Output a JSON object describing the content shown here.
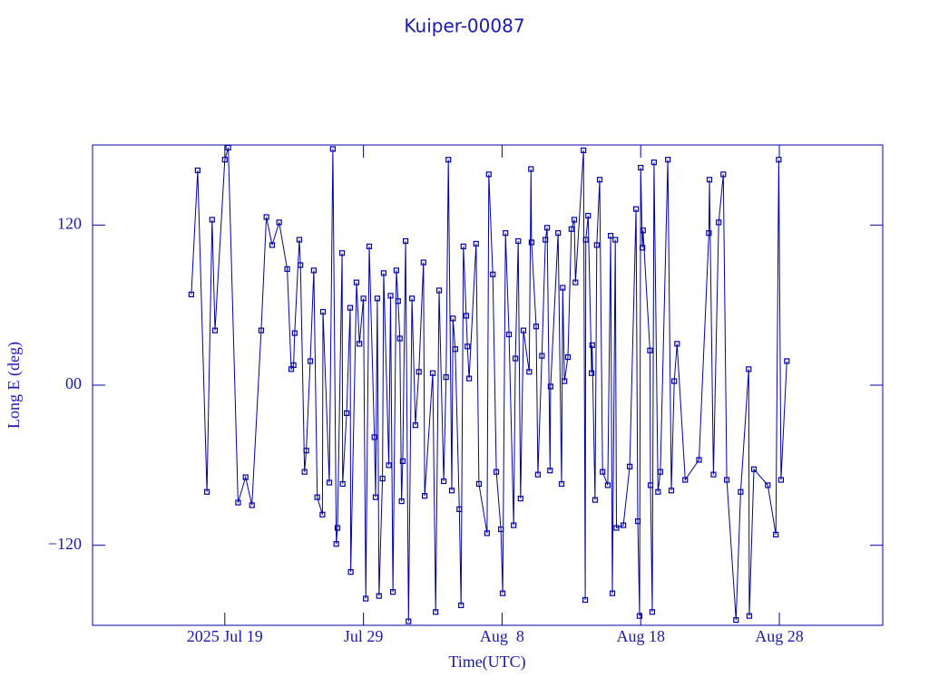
{
  "chart_data": {
    "type": "line",
    "title": "Kuiper-00087",
    "xlabel": "Time(UTC)",
    "ylabel": "Long E (deg)",
    "color": "#0000a8",
    "markers": true,
    "xlim": [
      "2025-07-09T11",
      "2025-09-04T11"
    ],
    "xticks": [
      {
        "value": "2025-07-19",
        "label": "2025 Jul 19"
      },
      {
        "value": "2025-07-29",
        "label": "Jul 29"
      },
      {
        "value": "2025-08-08",
        "label": "Aug  8"
      },
      {
        "value": "2025-08-18",
        "label": "Aug 18"
      },
      {
        "value": "2025-08-28",
        "label": "Aug 28"
      }
    ],
    "ylim": [
      -180,
      180
    ],
    "yticks": [
      {
        "value": -120,
        "label": "−120"
      },
      {
        "value": 0,
        "label": "00"
      },
      120
    ],
    "x": [
      "2025-07-16T14",
      "2025-07-17T01",
      "2025-07-17T17",
      "2025-07-18T02",
      "2025-07-18T07",
      "2025-07-19T00",
      "2025-07-19T06",
      "2025-07-19T23",
      "2025-07-20T12",
      "2025-07-20T23",
      "2025-07-21T15",
      "2025-07-22T00",
      "2025-07-22T10",
      "2025-07-22T22",
      "2025-07-23T12",
      "2025-07-23T19",
      "2025-07-23T23",
      "2025-07-24T01",
      "2025-07-24T09",
      "2025-07-24T11",
      "2025-07-24T18",
      "2025-07-24T21",
      "2025-07-25T04",
      "2025-07-25T10",
      "2025-07-25T16",
      "2025-07-26T01",
      "2025-07-26T02",
      "2025-07-26T13",
      "2025-07-26T19",
      "2025-07-27T01",
      "2025-07-27T03",
      "2025-07-27T11",
      "2025-07-27T12",
      "2025-07-27T19",
      "2025-07-28T01",
      "2025-07-28T02",
      "2025-07-28T12",
      "2025-07-28T17",
      "2025-07-29T00",
      "2025-07-29T04",
      "2025-07-29T10",
      "2025-07-29T19",
      "2025-07-29T21",
      "2025-07-30T00",
      "2025-07-30T03",
      "2025-07-30T09",
      "2025-07-30T11",
      "2025-07-30T20",
      "2025-07-30T23",
      "2025-07-31T03",
      "2025-07-31T09",
      "2025-07-31T12",
      "2025-07-31T15",
      "2025-07-31T18",
      "2025-07-31T20",
      "2025-08-01T01",
      "2025-08-01T06",
      "2025-08-01T12",
      "2025-08-01T18",
      "2025-08-02T00",
      "2025-08-02T08",
      "2025-08-02T10",
      "2025-08-03T00",
      "2025-08-03T05",
      "2025-08-03T11",
      "2025-08-03T19",
      "2025-08-03T23",
      "2025-08-04T03",
      "2025-08-04T09",
      "2025-08-04T11",
      "2025-08-04T15",
      "2025-08-04T22",
      "2025-08-05T01",
      "2025-08-05T05",
      "2025-08-05T10",
      "2025-08-05T12",
      "2025-08-05T15",
      "2025-08-06T03",
      "2025-08-06T08",
      "2025-08-06T22",
      "2025-08-07T01",
      "2025-08-07T08",
      "2025-08-07T14",
      "2025-08-07T22",
      "2025-08-08T01",
      "2025-08-08T06",
      "2025-08-08T12",
      "2025-08-08T20",
      "2025-08-08T23",
      "2025-08-09T04",
      "2025-08-09T08",
      "2025-08-09T13",
      "2025-08-09T23",
      "2025-08-10T02",
      "2025-08-10T03",
      "2025-08-10T11",
      "2025-08-10T14",
      "2025-08-10T21",
      "2025-08-11T03",
      "2025-08-11T06",
      "2025-08-11T11",
      "2025-08-11T12",
      "2025-08-12T01",
      "2025-08-12T07",
      "2025-08-12T09",
      "2025-08-12T12",
      "2025-08-12T18",
      "2025-08-13T00",
      "2025-08-13T05",
      "2025-08-13T07",
      "2025-08-13T21",
      "2025-08-14T00",
      "2025-08-14T01",
      "2025-08-14T05",
      "2025-08-14T11",
      "2025-08-14T12",
      "2025-08-14T17",
      "2025-08-14T20",
      "2025-08-15T01",
      "2025-08-15T06",
      "2025-08-15T15",
      "2025-08-15T20",
      "2025-08-15T23",
      "2025-08-16T04",
      "2025-08-16T06",
      "2025-08-16T18",
      "2025-08-17T05",
      "2025-08-17T16",
      "2025-08-17T19",
      "2025-08-17T22",
      "2025-08-18T00",
      "2025-08-18T03",
      "2025-08-18T04",
      "2025-08-18T16",
      "2025-08-18T17",
      "2025-08-18T20",
      "2025-08-18T23",
      "2025-08-19T06",
      "2025-08-19T10",
      "2025-08-19T23",
      "2025-08-20T05",
      "2025-08-20T10",
      "2025-08-20T15",
      "2025-08-21T05",
      "2025-08-22T05",
      "2025-08-22T22",
      "2025-08-22T23",
      "2025-08-23T06",
      "2025-08-23T15",
      "2025-08-23T23",
      "2025-08-24T05",
      "2025-08-24T21",
      "2025-08-25T05",
      "2025-08-25T19",
      "2025-08-25T20",
      "2025-08-26T04",
      "2025-08-27T04",
      "2025-08-27T18",
      "2025-08-27T23",
      "2025-08-28T03",
      "2025-08-28T13"
    ],
    "values": [
      68,
      161,
      -80,
      124,
      41,
      169,
      178,
      -88,
      -69,
      -90,
      41,
      126,
      105,
      122,
      87,
      12,
      15,
      39,
      109,
      90,
      -65,
      -49,
      18,
      86,
      -84,
      -97,
      55,
      -73,
      177,
      -119,
      -107,
      99,
      -74,
      -21,
      58,
      -140,
      77,
      31,
      65,
      -160,
      104,
      -39,
      -84,
      65,
      -158,
      -70,
      84,
      -60,
      67,
      -155,
      86,
      63,
      35,
      -87,
      -57,
      108,
      -177,
      65,
      -30,
      10,
      92,
      -83,
      9,
      -170,
      71,
      -72,
      6,
      169,
      -79,
      50,
      27,
      -93,
      -165,
      104,
      52,
      29,
      5,
      106,
      -74,
      -111,
      158,
      83,
      -65,
      -108,
      -156,
      114,
      38,
      -105,
      20,
      108,
      -85,
      41,
      10,
      162,
      107,
      44,
      -67,
      22,
      109,
      118,
      -64,
      -1,
      114,
      -74,
      73,
      3,
      21,
      117,
      124,
      77,
      176,
      -161,
      109,
      127,
      9,
      30,
      -86,
      105,
      154,
      -65,
      -75,
      112,
      -156,
      109,
      -107,
      -105,
      -61,
      132,
      -102,
      -173,
      163,
      103,
      116,
      26,
      -75,
      -170,
      167,
      -80,
      -65,
      169,
      -79,
      3,
      31,
      -71,
      -56,
      114,
      154,
      -67,
      122,
      158,
      -71,
      -176,
      -80,
      12,
      -173,
      -63,
      -75,
      -112,
      169,
      -71,
      18
    ]
  }
}
